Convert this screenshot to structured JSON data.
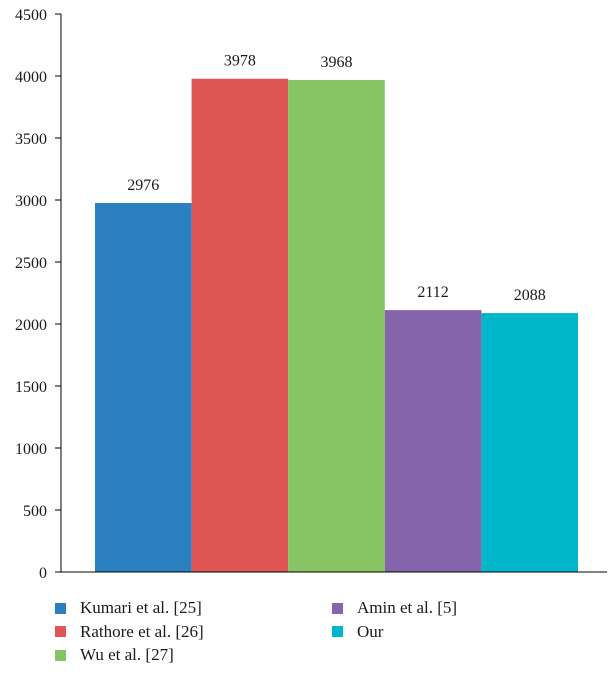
{
  "chart_data": {
    "type": "bar",
    "title": "",
    "xlabel": "",
    "ylabel": "",
    "ylim": [
      0,
      4500
    ],
    "yticks": [
      0,
      500,
      1000,
      1500,
      2000,
      2500,
      3000,
      3500,
      4000,
      4500
    ],
    "grid": false,
    "legend_position": "bottom",
    "categories": [
      "Kumari et al. [25]",
      "Rathore et al. [26]",
      "Wu et al. [27]",
      "Amin et al. [5]",
      "Our"
    ],
    "values": [
      2976,
      3978,
      3968,
      2112,
      2088
    ],
    "colors": [
      "#2b80c1",
      "#df5654",
      "#87c464",
      "#8465ab",
      "#01b6cb"
    ]
  }
}
